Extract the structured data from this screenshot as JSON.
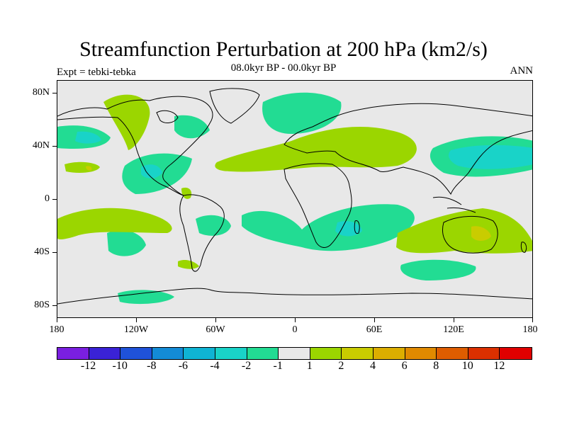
{
  "title": "Streamfunction Perturbation at 200 hPa (km2/s)",
  "subtitle": "08.0kyr BP - 00.0kyr BP",
  "left_label": "Expt = tebki-tebka",
  "right_label": "ANN",
  "y_axis_labels": [
    "80N",
    "40N",
    "0",
    "40S",
    "80S"
  ],
  "x_axis_labels": [
    "180",
    "120W",
    "60W",
    "0",
    "60E",
    "120E",
    "180"
  ],
  "colorbar": {
    "colors": [
      "#7a1fe0",
      "#3a22d6",
      "#1f52d9",
      "#138bd6",
      "#0fb4d4",
      "#19d3c8",
      "#22dc93",
      "#e8e8e8",
      "#9bd600",
      "#c9cc00",
      "#dcae00",
      "#e08a00",
      "#de5d00",
      "#dc3000",
      "#e00000"
    ],
    "labels": [
      "-12",
      "-10",
      "-8",
      "-6",
      "-4",
      "-2",
      "-1",
      "1",
      "2",
      "4",
      "6",
      "8",
      "10",
      "12"
    ]
  },
  "fill_colors": {
    "neg1": "#22dc93",
    "neg2": "#19d3c8",
    "pos1": "#9bd600",
    "pos2": "#c9cc00"
  }
}
